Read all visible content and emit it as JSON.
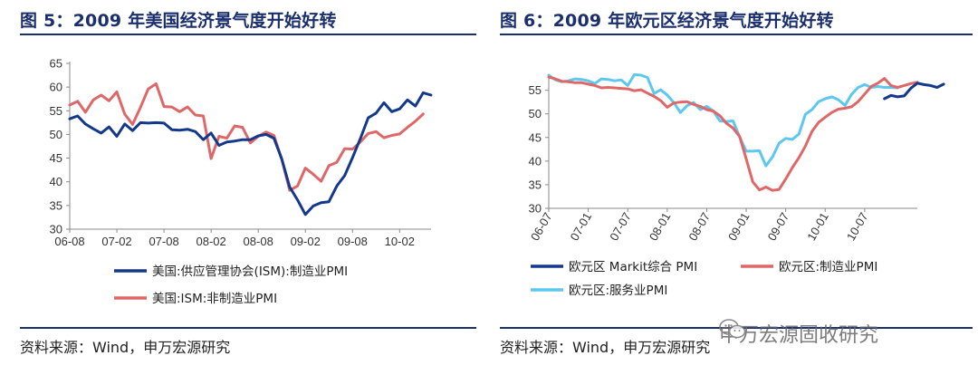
{
  "left": {
    "title": "图 5：2009 年美国经济景气度开始好转",
    "source": "资料来源：Wind，申万宏源研究"
  },
  "right": {
    "title": "图 6：2009 年欧元区经济景气度开始好转",
    "source": "资料来源：Wind，申万宏源研究"
  },
  "watermark": {
    "text": "申万宏源固收研究",
    "icon": "wechat-icon"
  },
  "chart_data": [
    {
      "type": "line",
      "title": "",
      "xlabel": "",
      "ylabel": "",
      "ylim": [
        30,
        65
      ],
      "yticks": [
        30,
        35,
        40,
        45,
        50,
        55,
        60,
        65
      ],
      "x_start": "2006-08",
      "xticks": [
        "06-08",
        "07-02",
        "07-08",
        "08-02",
        "08-08",
        "09-02",
        "09-08",
        "10-02"
      ],
      "grid": false,
      "legend": "bottom",
      "series": [
        {
          "name": "美国:供应管理协会(ISM):制造业PMI",
          "color": "#13388c",
          "values": [
            53.3,
            53.9,
            52.2,
            51.2,
            50.3,
            51.6,
            49.6,
            52.2,
            50.8,
            52.5,
            52.4,
            52.5,
            52.4,
            51.0,
            50.9,
            51.1,
            50.6,
            48.9,
            50.3,
            47.7,
            48.4,
            48.6,
            48.9,
            48.9,
            49.7,
            50.0,
            49.2,
            44.8,
            38.9,
            36.2,
            33.1,
            34.9,
            35.6,
            35.8,
            39.1,
            41.3,
            45.1,
            49.1,
            53.5,
            54.5,
            56.7,
            54.8,
            55.4,
            57.3,
            56.0,
            58.8,
            58.3
          ]
        },
        {
          "name": "美国:ISM:非制造业PMI",
          "color": "#e06767",
          "values": [
            56.2,
            57.0,
            54.7,
            57.3,
            58.3,
            57.1,
            59.0,
            54.3,
            52.1,
            55.7,
            59.6,
            60.7,
            55.9,
            55.8,
            54.8,
            55.8,
            54.1,
            53.9,
            44.9,
            49.6,
            49.2,
            51.8,
            51.5,
            48.2,
            49.6,
            50.5,
            49.8,
            44.7,
            38.2,
            39.1,
            42.9,
            41.6,
            40.1,
            43.4,
            44.1,
            47.0,
            46.9,
            48.4,
            50.2,
            50.6,
            49.3,
            49.8,
            50.1,
            51.5,
            52.8,
            54.3
          ]
        }
      ]
    },
    {
      "type": "line",
      "title": "",
      "xlabel": "",
      "ylabel": "",
      "ylim": [
        30,
        58
      ],
      "yticks": [
        30,
        35,
        40,
        45,
        50,
        55
      ],
      "x_start": "2006-07",
      "xticks": [
        "06-07",
        "07-01",
        "07-07",
        "08-01",
        "08-07",
        "09-01",
        "09-07",
        "10-01",
        "10-07"
      ],
      "grid": false,
      "legend": "bottom",
      "series": [
        {
          "name": "欧元区 Markit综合 PMI",
          "color": "#13388c",
          "x_start_index": 51,
          "values": [
            53.2,
            53.9,
            53.6,
            53.8,
            55.4,
            56.5,
            56.2,
            56.0,
            55.6,
            56.3
          ]
        },
        {
          "name": "欧元区:制造业PMI",
          "color": "#e06767",
          "values": [
            57.8,
            57.4,
            56.9,
            56.8,
            56.6,
            56.6,
            56.3,
            56.0,
            55.5,
            55.6,
            55.5,
            55.4,
            55.3,
            54.9,
            55.1,
            54.4,
            53.7,
            52.8,
            51.4,
            52.3,
            52.5,
            52.6,
            52.0,
            51.6,
            50.9,
            50.6,
            49.6,
            48.0,
            47.0,
            45.2,
            40.5,
            35.6,
            33.9,
            34.5,
            33.8,
            34.0,
            36.2,
            38.6,
            40.7,
            43.2,
            46.3,
            48.2,
            49.3,
            50.3,
            51.0,
            51.2,
            51.5,
            52.6,
            54.2,
            55.8,
            56.5,
            57.5,
            56.0,
            55.6,
            56.0,
            56.4,
            56.7
          ]
        },
        {
          "name": "欧元区:服务业PMI",
          "color": "#5cc8f0",
          "values": [
            58.2,
            57.2,
            56.8,
            57.0,
            57.4,
            57.3,
            57.0,
            56.4,
            57.4,
            57.3,
            57.0,
            57.2,
            56.0,
            58.3,
            58.2,
            57.7,
            54.3,
            55.1,
            54.0,
            52.4,
            50.3,
            51.7,
            52.4,
            50.9,
            51.6,
            50.6,
            48.5,
            48.4,
            48.5,
            45.1,
            42.1,
            42.1,
            42.2,
            39.0,
            40.9,
            43.8,
            44.8,
            44.6,
            45.7,
            49.9,
            50.9,
            52.6,
            53.2,
            53.6,
            53.0,
            51.8,
            54.1,
            55.6,
            56.2,
            55.6,
            55.8,
            55.6,
            55.6,
            55.5
          ]
        }
      ]
    }
  ]
}
